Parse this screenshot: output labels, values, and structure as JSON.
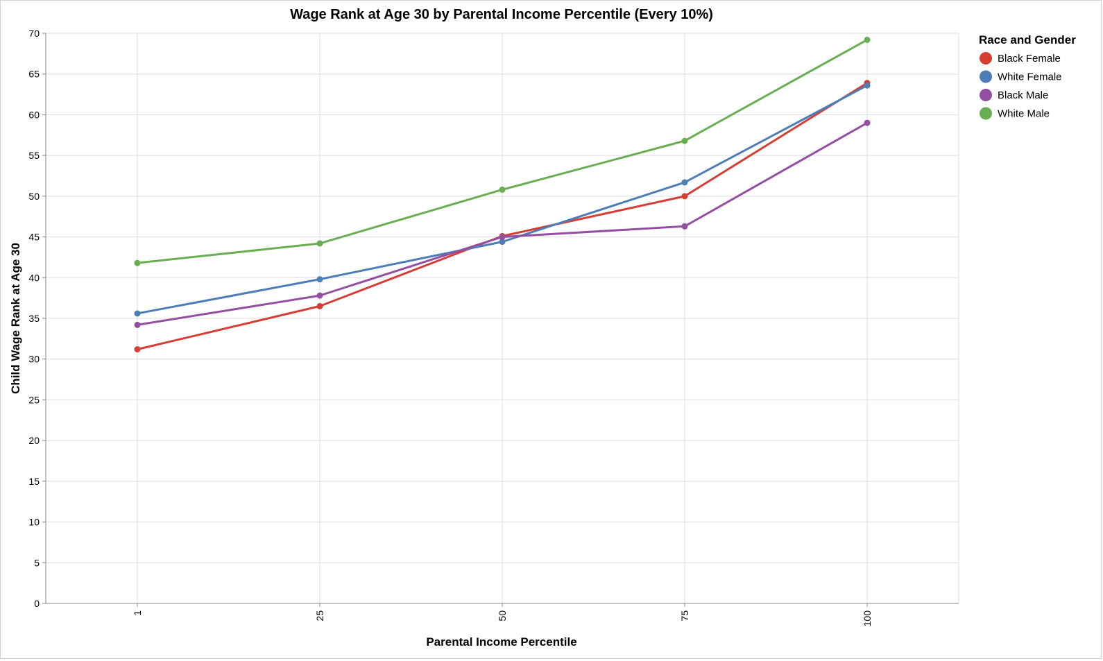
{
  "chart_data": {
    "type": "line",
    "title": "Wage Rank at Age 30 by Parental Income Percentile (Every 10%)",
    "xlabel": "Parental Income Percentile",
    "ylabel": "Child Wage Rank at Age 30",
    "categories": [
      "1",
      "25",
      "50",
      "75",
      "100"
    ],
    "ylim": [
      0,
      70
    ],
    "yticks": [
      0,
      5,
      10,
      15,
      20,
      25,
      30,
      35,
      40,
      45,
      50,
      55,
      60,
      65,
      70
    ],
    "grid": true,
    "legend": {
      "title": "Race and Gender",
      "placement": "top-right"
    },
    "series": [
      {
        "name": "Black Female",
        "color": "#d53e35",
        "values": [
          31.2,
          36.5,
          45.1,
          50.0,
          63.9
        ]
      },
      {
        "name": "White Female",
        "color": "#4c7db6",
        "values": [
          35.6,
          39.8,
          44.4,
          51.7,
          63.6
        ]
      },
      {
        "name": "Black Male",
        "color": "#944ea2",
        "values": [
          34.2,
          37.8,
          45.0,
          46.3,
          59.0
        ]
      },
      {
        "name": "White Male",
        "color": "#69ae52",
        "values": [
          41.8,
          44.2,
          50.8,
          56.8,
          69.2
        ]
      }
    ]
  }
}
